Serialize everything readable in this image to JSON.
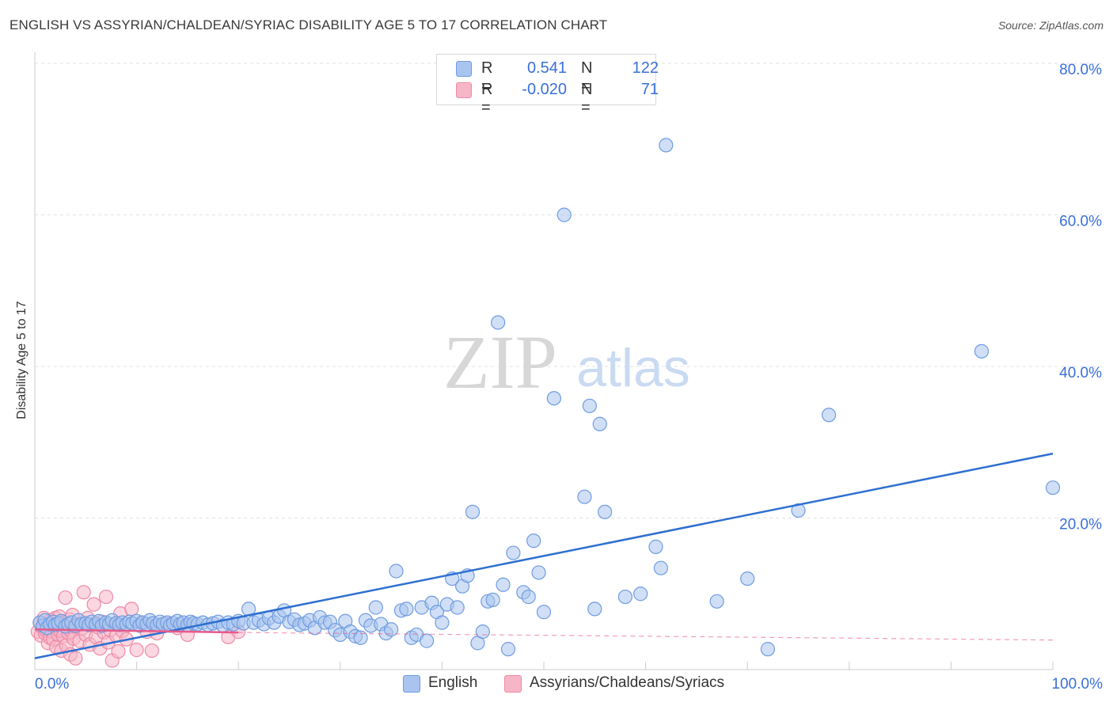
{
  "title": "ENGLISH VS ASSYRIAN/CHALDEAN/SYRIAC DISABILITY AGE 5 TO 17 CORRELATION CHART",
  "source": "Source: ZipAtlas.com",
  "watermark": {
    "zip": "ZIP",
    "atlas": "atlas"
  },
  "legend": {
    "rows": [
      {
        "r_label": "R =",
        "r_value": "0.541",
        "n_label": "N =",
        "n_value": "122",
        "color": "#a9c4ef"
      },
      {
        "r_label": "R =",
        "r_value": "-0.020",
        "n_label": "N =",
        "n_value": "71",
        "color": "#f6b6c8"
      }
    ]
  },
  "bottom_legend": [
    {
      "label": "English",
      "color": "#a9c4ef"
    },
    {
      "label": "Assyrians/Chaldeans/Syriacs",
      "color": "#f6b6c8"
    }
  ],
  "colors": {
    "blue_fill": "#a9c4ef",
    "blue_stroke": "#6f9ce0",
    "blue_line": "#2e6fd0",
    "pink_fill": "#f6b6c8",
    "pink_stroke": "#ee8aa6",
    "pink_line": "#e8598a",
    "tick_text": "#3a6fd8",
    "grid": "#e2e2e2"
  },
  "chart_data": {
    "type": "scatter",
    "title": "ENGLISH VS ASSYRIAN/CHALDEAN/SYRIAC DISABILITY AGE 5 TO 17 CORRELATION CHART",
    "xlabel": "",
    "ylabel": "Disability Age 5 to 17",
    "xlim": [
      0,
      100
    ],
    "ylim": [
      0,
      80
    ],
    "x_tick_labels": [
      "0.0%",
      "100.0%"
    ],
    "y_tick_values": [
      20,
      40,
      60,
      80
    ],
    "y_tick_labels": [
      "20.0%",
      "40.0%",
      "60.0%",
      "80.0%"
    ],
    "series": [
      {
        "name": "English",
        "points": [
          [
            0.5,
            6.2
          ],
          [
            0.8,
            5.8
          ],
          [
            1.0,
            6.5
          ],
          [
            1.2,
            5.5
          ],
          [
            1.5,
            6.0
          ],
          [
            1.8,
            6.3
          ],
          [
            2.0,
            5.9
          ],
          [
            2.3,
            6.1
          ],
          [
            2.6,
            6.4
          ],
          [
            3.0,
            5.7
          ],
          [
            3.3,
            6.0
          ],
          [
            3.6,
            6.2
          ],
          [
            4.0,
            5.8
          ],
          [
            4.3,
            6.5
          ],
          [
            4.6,
            6.0
          ],
          [
            5.0,
            6.1
          ],
          [
            5.3,
            5.9
          ],
          [
            5.6,
            6.3
          ],
          [
            6.0,
            6.0
          ],
          [
            6.3,
            6.4
          ],
          [
            6.6,
            5.8
          ],
          [
            7.0,
            6.2
          ],
          [
            7.3,
            6.0
          ],
          [
            7.6,
            6.5
          ],
          [
            8.0,
            6.1
          ],
          [
            8.3,
            5.9
          ],
          [
            8.6,
            6.2
          ],
          [
            9.0,
            6.0
          ],
          [
            9.3,
            6.3
          ],
          [
            9.6,
            6.1
          ],
          [
            10.0,
            6.4
          ],
          [
            10.3,
            5.8
          ],
          [
            10.6,
            6.2
          ],
          [
            11.0,
            6.0
          ],
          [
            11.3,
            6.5
          ],
          [
            11.6,
            6.1
          ],
          [
            12.0,
            5.9
          ],
          [
            12.3,
            6.3
          ],
          [
            12.6,
            6.0
          ],
          [
            13.0,
            6.2
          ],
          [
            13.3,
            5.8
          ],
          [
            13.6,
            6.1
          ],
          [
            14.0,
            6.4
          ],
          [
            14.3,
            6.0
          ],
          [
            14.6,
            6.2
          ],
          [
            15.0,
            5.9
          ],
          [
            15.3,
            6.3
          ],
          [
            15.6,
            6.1
          ],
          [
            16.0,
            6.0
          ],
          [
            16.5,
            6.2
          ],
          [
            17.0,
            5.9
          ],
          [
            17.5,
            6.1
          ],
          [
            18.0,
            6.3
          ],
          [
            18.5,
            5.8
          ],
          [
            19.0,
            6.2
          ],
          [
            19.5,
            6.0
          ],
          [
            20.0,
            6.4
          ],
          [
            20.5,
            6.1
          ],
          [
            21.0,
            8.0
          ],
          [
            21.5,
            6.2
          ],
          [
            22.0,
            6.5
          ],
          [
            22.5,
            6.0
          ],
          [
            23.0,
            6.8
          ],
          [
            23.5,
            6.2
          ],
          [
            24.0,
            7.0
          ],
          [
            24.5,
            7.8
          ],
          [
            25.0,
            6.3
          ],
          [
            25.5,
            6.6
          ],
          [
            26.0,
            5.9
          ],
          [
            26.5,
            6.1
          ],
          [
            27.0,
            6.5
          ],
          [
            27.5,
            5.5
          ],
          [
            28.0,
            6.9
          ],
          [
            28.5,
            6.2
          ],
          [
            29.0,
            6.3
          ],
          [
            29.5,
            5.2
          ],
          [
            30.0,
            4.6
          ],
          [
            30.5,
            6.4
          ],
          [
            31.0,
            5.0
          ],
          [
            31.5,
            4.4
          ],
          [
            32.0,
            4.2
          ],
          [
            32.5,
            6.5
          ],
          [
            33.0,
            5.8
          ],
          [
            33.5,
            8.2
          ],
          [
            34.0,
            6.0
          ],
          [
            34.5,
            4.8
          ],
          [
            35.0,
            5.3
          ],
          [
            35.5,
            13.0
          ],
          [
            36.0,
            7.8
          ],
          [
            36.5,
            8.0
          ],
          [
            37.0,
            4.2
          ],
          [
            37.5,
            4.6
          ],
          [
            38.0,
            8.2
          ],
          [
            38.5,
            3.8
          ],
          [
            39.0,
            8.8
          ],
          [
            39.5,
            7.6
          ],
          [
            40.0,
            6.2
          ],
          [
            40.5,
            8.6
          ],
          [
            41.0,
            12.0
          ],
          [
            41.5,
            8.2
          ],
          [
            42.0,
            11.0
          ],
          [
            42.5,
            12.4
          ],
          [
            43.0,
            20.8
          ],
          [
            43.5,
            3.5
          ],
          [
            44.0,
            5.0
          ],
          [
            44.5,
            9.0
          ],
          [
            45.0,
            9.2
          ],
          [
            45.5,
            45.8
          ],
          [
            46.0,
            11.2
          ],
          [
            46.5,
            2.7
          ],
          [
            47.0,
            15.4
          ],
          [
            48.0,
            10.2
          ],
          [
            48.5,
            9.6
          ],
          [
            49.0,
            17.0
          ],
          [
            49.5,
            12.8
          ],
          [
            50.0,
            7.6
          ],
          [
            51.0,
            35.8
          ],
          [
            52.0,
            60.0
          ],
          [
            54.0,
            22.8
          ],
          [
            54.5,
            34.8
          ],
          [
            55.0,
            8.0
          ],
          [
            55.5,
            32.4
          ],
          [
            56.0,
            20.8
          ],
          [
            58.0,
            9.6
          ],
          [
            59.5,
            10.0
          ],
          [
            61.0,
            16.2
          ],
          [
            61.5,
            13.4
          ],
          [
            62.0,
            69.2
          ],
          [
            67.0,
            9.0
          ],
          [
            70.0,
            12.0
          ],
          [
            72.0,
            2.7
          ],
          [
            75.0,
            21.0
          ],
          [
            78.0,
            33.6
          ],
          [
            93.0,
            42.0
          ],
          [
            100.0,
            24.0
          ]
        ],
        "trend": {
          "x": [
            0,
            100
          ],
          "y": [
            1.5,
            28.5
          ]
        }
      },
      {
        "name": "Assyrians/Chaldeans/Syriacs",
        "points": [
          [
            0.3,
            5.0
          ],
          [
            0.5,
            6.2
          ],
          [
            0.6,
            4.5
          ],
          [
            0.8,
            5.5
          ],
          [
            0.9,
            6.8
          ],
          [
            1.0,
            4.8
          ],
          [
            1.1,
            5.2
          ],
          [
            1.2,
            6.0
          ],
          [
            1.3,
            3.5
          ],
          [
            1.4,
            5.8
          ],
          [
            1.5,
            4.2
          ],
          [
            1.6,
            6.5
          ],
          [
            1.7,
            5.0
          ],
          [
            1.8,
            4.0
          ],
          [
            1.9,
            5.6
          ],
          [
            2.0,
            6.8
          ],
          [
            2.1,
            3.0
          ],
          [
            2.2,
            5.3
          ],
          [
            2.3,
            4.6
          ],
          [
            2.4,
            7.0
          ],
          [
            2.5,
            5.1
          ],
          [
            2.6,
            2.5
          ],
          [
            2.7,
            6.2
          ],
          [
            2.8,
            4.4
          ],
          [
            2.9,
            5.9
          ],
          [
            3.0,
            9.5
          ],
          [
            3.1,
            3.2
          ],
          [
            3.2,
            5.5
          ],
          [
            3.3,
            4.8
          ],
          [
            3.4,
            6.6
          ],
          [
            3.5,
            2.0
          ],
          [
            3.6,
            5.0
          ],
          [
            3.7,
            7.2
          ],
          [
            3.8,
            4.1
          ],
          [
            3.9,
            5.7
          ],
          [
            4.0,
            1.5
          ],
          [
            4.2,
            6.0
          ],
          [
            4.4,
            3.8
          ],
          [
            4.6,
            5.4
          ],
          [
            4.8,
            10.2
          ],
          [
            5.0,
            4.6
          ],
          [
            5.2,
            6.8
          ],
          [
            5.4,
            3.3
          ],
          [
            5.6,
            5.9
          ],
          [
            5.8,
            8.6
          ],
          [
            6.0,
            4.3
          ],
          [
            6.2,
            5.6
          ],
          [
            6.4,
            2.8
          ],
          [
            6.6,
            6.3
          ],
          [
            6.8,
            4.9
          ],
          [
            7.0,
            9.6
          ],
          [
            7.2,
            3.6
          ],
          [
            7.4,
            5.2
          ],
          [
            7.6,
            1.2
          ],
          [
            7.8,
            6.0
          ],
          [
            8.0,
            4.5
          ],
          [
            8.2,
            2.4
          ],
          [
            8.4,
            7.4
          ],
          [
            8.6,
            5.1
          ],
          [
            9.0,
            4.0
          ],
          [
            9.5,
            8.0
          ],
          [
            10.0,
            2.6
          ],
          [
            10.5,
            6.2
          ],
          [
            11.0,
            5.0
          ],
          [
            11.5,
            2.5
          ],
          [
            12.0,
            4.8
          ],
          [
            13.0,
            6.0
          ],
          [
            14.0,
            5.5
          ],
          [
            15.0,
            4.6
          ],
          [
            19.0,
            4.3
          ],
          [
            20.0,
            5.0
          ]
        ],
        "trend": {
          "x": [
            0,
            20
          ],
          "y": [
            5.3,
            4.9
          ]
        },
        "trend_dashed": {
          "x": [
            20,
            100
          ],
          "y": [
            4.9,
            3.9
          ]
        }
      }
    ]
  }
}
